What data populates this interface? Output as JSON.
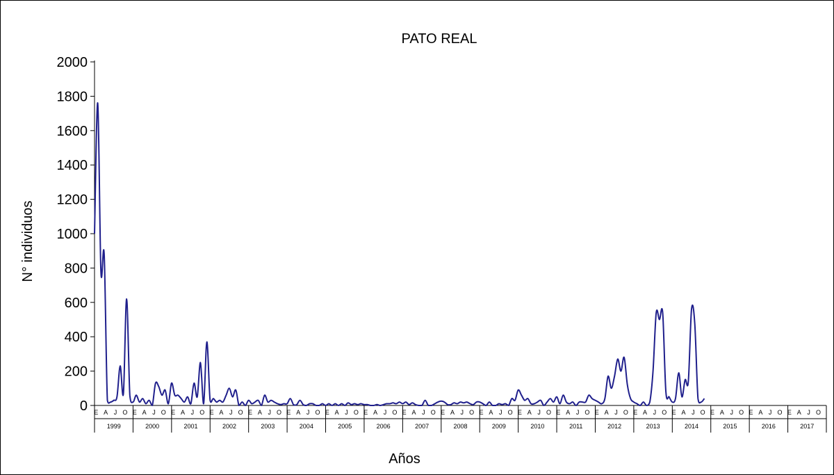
{
  "chart_data": {
    "type": "line",
    "title": "PATO REAL",
    "xlabel": "Años",
    "ylabel": "N° individuos",
    "ylim": [
      0,
      2000
    ],
    "yticks": [
      0,
      200,
      400,
      600,
      800,
      1000,
      1200,
      1400,
      1600,
      1800,
      2000
    ],
    "month_labels": [
      "E",
      "A",
      "J",
      "O"
    ],
    "years": [
      "1999",
      "2000",
      "2001",
      "2002",
      "2003",
      "2004",
      "2005",
      "2006",
      "2007",
      "2008",
      "2009",
      "2010",
      "2011",
      "2012",
      "2013",
      "2014",
      "2015",
      "2016",
      "2017"
    ],
    "grid": false,
    "legend": "none",
    "line_color": "#1f1f8c",
    "series": [
      {
        "values": [
          1000,
          1760,
          780,
          880,
          30,
          20,
          30,
          50,
          230,
          70,
          620,
          60,
          20,
          60,
          20,
          40,
          10,
          30,
          0,
          130,
          110,
          60,
          90,
          10,
          130,
          60,
          60,
          40,
          20,
          50,
          10,
          130,
          50,
          250,
          10,
          370,
          30,
          40,
          20,
          30,
          20,
          60,
          100,
          50,
          90,
          0,
          20,
          0,
          30,
          10,
          20,
          30,
          0,
          60,
          20,
          30,
          20,
          10,
          5,
          10,
          10,
          40,
          5,
          5,
          30,
          5,
          0,
          10,
          10,
          0,
          0,
          10,
          0,
          10,
          0,
          10,
          0,
          10,
          0,
          15,
          5,
          10,
          5,
          10,
          5,
          5,
          0,
          0,
          5,
          0,
          5,
          10,
          10,
          15,
          10,
          20,
          10,
          20,
          5,
          15,
          5,
          0,
          0,
          30,
          0,
          0,
          10,
          20,
          25,
          20,
          5,
          5,
          15,
          10,
          20,
          15,
          20,
          10,
          5,
          20,
          20,
          10,
          0,
          20,
          0,
          0,
          10,
          5,
          10,
          0,
          40,
          30,
          90,
          60,
          30,
          40,
          10,
          10,
          20,
          30,
          0,
          20,
          40,
          20,
          50,
          10,
          60,
          20,
          10,
          20,
          0,
          20,
          20,
          20,
          60,
          40,
          30,
          20,
          10,
          40,
          170,
          100,
          170,
          270,
          200,
          280,
          120,
          40,
          20,
          10,
          0,
          20,
          0,
          20,
          200,
          540,
          500,
          540,
          80,
          50,
          20,
          40,
          190,
          50,
          150,
          140,
          560,
          480,
          40,
          20,
          40
        ]
      }
    ]
  }
}
